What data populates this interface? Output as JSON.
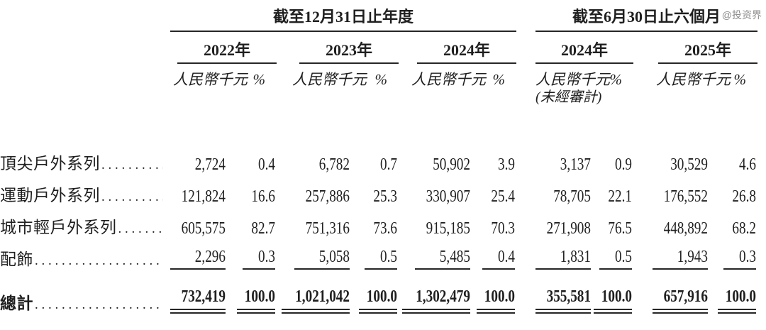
{
  "watermark": "@投资界",
  "header": {
    "group1_title": "截至12月31日止年度",
    "group2_title": "截至6月30日止六個月",
    "years": [
      "2022年",
      "2023年",
      "2024年",
      "2024年",
      "2025年"
    ],
    "amount_label": "人民幣千元",
    "percent_label": "%",
    "unaudited_note": "(未經審計)"
  },
  "rows": [
    {
      "label": "頂尖戶外系列",
      "cells": [
        "2,724",
        "0.4",
        "6,782",
        "0.7",
        "50,902",
        "3.9",
        "3,137",
        "0.9",
        "30,529",
        "4.6"
      ]
    },
    {
      "label": "運動戶外系列",
      "cells": [
        "121,824",
        "16.6",
        "257,886",
        "25.3",
        "330,907",
        "25.4",
        "78,705",
        "22.1",
        "176,552",
        "26.8"
      ]
    },
    {
      "label": "城市輕戶外系列",
      "cells": [
        "605,575",
        "82.7",
        "751,316",
        "73.6",
        "915,185",
        "70.3",
        "271,908",
        "76.5",
        "448,892",
        "68.2"
      ]
    },
    {
      "label": "配飾",
      "cells": [
        "2,296",
        "0.3",
        "5,058",
        "0.5",
        "5,485",
        "0.4",
        "1,831",
        "0.5",
        "1,943",
        "0.3"
      ]
    }
  ],
  "total": {
    "label": "總計",
    "cells": [
      "732,419",
      "100.0",
      "1,021,042",
      "100.0",
      "1,302,479",
      "100.0",
      "355,581",
      "100.0",
      "657,916",
      "100.0"
    ]
  }
}
